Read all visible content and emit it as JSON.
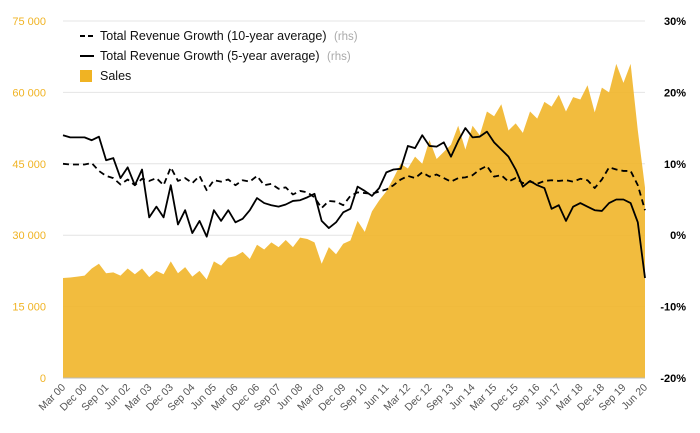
{
  "chart_data": {
    "type": "area",
    "x": [
      "Mar 00",
      "Jun 00",
      "Sep 00",
      "Dec 00",
      "Mar 01",
      "Jun 01",
      "Sep 01",
      "Dec 01",
      "Mar 02",
      "Jun 02",
      "Sep 02",
      "Dec 02",
      "Mar 03",
      "Jun 03",
      "Sep 03",
      "Dec 03",
      "Mar 04",
      "Jun 04",
      "Sep 04",
      "Dec 04",
      "Mar 05",
      "Jun 05",
      "Sep 05",
      "Dec 05",
      "Mar 06",
      "Jun 06",
      "Sep 06",
      "Dec 06",
      "Mar 07",
      "Jun 07",
      "Sep 07",
      "Dec 07",
      "Mar 08",
      "Jun 08",
      "Sep 08",
      "Dec 08",
      "Mar 09",
      "Jun 09",
      "Sep 09",
      "Dec 09",
      "Mar 10",
      "Jun 10",
      "Sep 10",
      "Dec 10",
      "Mar 11",
      "Jun 11",
      "Sep 11",
      "Dec 11",
      "Mar 12",
      "Jun 12",
      "Sep 12",
      "Dec 12",
      "Mar 13",
      "Jun 13",
      "Sep 13",
      "Dec 13",
      "Mar 14",
      "Jun 14",
      "Sep 14",
      "Dec 14",
      "Mar 15",
      "Jun 15",
      "Sep 15",
      "Dec 15",
      "Mar 16",
      "Jun 16",
      "Sep 16",
      "Dec 16",
      "Mar 17",
      "Jun 17",
      "Sep 17",
      "Dec 17",
      "Mar 18",
      "Jun 18",
      "Sep 18",
      "Dec 18",
      "Mar 19",
      "Jun 19",
      "Sep 19",
      "Dec 19",
      "Mar 20",
      "Jun 20"
    ],
    "x_tick_labels": [
      "Mar 00",
      "Dec 00",
      "Sep 01",
      "Jun 02",
      "Mar 03",
      "Dec 03",
      "Sep 04",
      "Jun 05",
      "Mar 06",
      "Dec 06",
      "Sep 07",
      "Jun 08",
      "Mar 09",
      "Dec 09",
      "Sep 10",
      "Jun 11",
      "Mar 12",
      "Dec 12",
      "Sep 13",
      "Jun 14",
      "Mar 15",
      "Dec 15",
      "Sep 16",
      "Jun 17",
      "Mar 18",
      "Dec 18",
      "Sep 19",
      "Jun 20"
    ],
    "y_left": {
      "ticks": [
        "0",
        "15 000",
        "30 000",
        "45 000",
        "60 000",
        "75 000"
      ],
      "lim": [
        0,
        75000
      ]
    },
    "y_right": {
      "ticks": [
        "-20%",
        "-10%",
        "0%",
        "10%",
        "20%",
        "30%"
      ],
      "lim": [
        -20,
        30
      ]
    },
    "series": [
      {
        "name": "Sales",
        "axis": "left",
        "kind": "area",
        "color": "#f0b323",
        "values": [
          21000,
          21100,
          21300,
          21500,
          23000,
          24000,
          22000,
          22200,
          21500,
          23000,
          21800,
          23000,
          21200,
          22500,
          21800,
          24500,
          22000,
          23300,
          21300,
          22500,
          20700,
          24500,
          23600,
          25300,
          25600,
          26500,
          25000,
          28000,
          27000,
          28500,
          27500,
          29000,
          27500,
          29500,
          29200,
          28500,
          24000,
          27500,
          26000,
          28200,
          28900,
          33000,
          30700,
          35000,
          37300,
          39200,
          42000,
          45000,
          44000,
          46500,
          45000,
          50000,
          46000,
          47500,
          49000,
          53000,
          48000,
          53000,
          51000,
          56000,
          55000,
          57500,
          52000,
          53500,
          51500,
          56000,
          54500,
          58000,
          57000,
          59500,
          56000,
          59000,
          58500,
          61500,
          55800,
          61000,
          60000,
          66000,
          62000,
          66000,
          52000,
          40000
        ]
      },
      {
        "name": "Total Revenue Growth (10-year average)",
        "axis": "right",
        "kind": "line",
        "dash": true,
        "color": "#000000",
        "values": [
          10.0,
          9.9,
          9.9,
          9.9,
          10.1,
          9.0,
          8.3,
          8.0,
          7.1,
          7.8,
          7.0,
          7.9,
          7.6,
          8.0,
          7.0,
          9.5,
          7.6,
          8.0,
          7.3,
          8.3,
          6.3,
          7.7,
          7.5,
          7.8,
          7.0,
          7.7,
          7.5,
          8.3,
          7.0,
          7.2,
          6.5,
          6.7,
          5.7,
          6.2,
          6.0,
          5.3,
          3.8,
          4.8,
          4.7,
          4.2,
          5.5,
          6.0,
          5.9,
          5.8,
          6.1,
          6.4,
          7.0,
          7.8,
          8.3,
          8.0,
          8.8,
          8.2,
          8.5,
          8.0,
          7.5,
          8.0,
          8.1,
          8.4,
          9.2,
          9.7,
          8.2,
          8.4,
          7.5,
          8.0,
          7.3,
          7.5,
          7.2,
          7.6,
          7.7,
          7.6,
          7.7,
          7.5,
          7.9,
          7.7,
          6.6,
          7.8,
          9.5,
          9.2,
          9.0,
          9.0,
          7.0,
          3.5
        ]
      },
      {
        "name": "Total Revenue Growth (5-year average)",
        "axis": "right",
        "kind": "line",
        "dash": false,
        "color": "#000000",
        "values": [
          14.0,
          13.7,
          13.7,
          13.7,
          13.3,
          13.8,
          10.5,
          10.8,
          8.0,
          9.5,
          7.0,
          9.2,
          2.5,
          4.0,
          2.5,
          7.0,
          1.5,
          3.5,
          0.3,
          2.0,
          -0.2,
          3.5,
          2.0,
          3.5,
          1.8,
          2.3,
          3.5,
          5.2,
          4.5,
          4.2,
          4.0,
          4.3,
          4.8,
          4.9,
          5.3,
          5.8,
          2.0,
          1.0,
          1.8,
          3.2,
          3.7,
          6.8,
          6.2,
          5.5,
          6.6,
          8.8,
          9.2,
          9.3,
          12.5,
          12.2,
          14.0,
          12.5,
          12.4,
          13.0,
          11.0,
          13.2,
          15.0,
          13.7,
          13.8,
          14.5,
          13.0,
          12.0,
          11.0,
          9.2,
          6.8,
          7.6,
          7.0,
          6.6,
          3.7,
          4.2,
          2.0,
          4.0,
          4.5,
          4.0,
          3.5,
          3.4,
          4.5,
          5.0,
          5.0,
          4.5,
          1.8,
          -6.0
        ]
      }
    ],
    "legend": {
      "placement": "top-left",
      "items": [
        {
          "label": "Total Revenue Growth (10-year average)",
          "suffix": "(rhs)",
          "style": "dashed"
        },
        {
          "label": "Total Revenue Growth (5-year average)",
          "suffix": "(rhs)",
          "style": "solid"
        },
        {
          "label": "Sales",
          "suffix": "",
          "style": "area"
        }
      ]
    },
    "grid": true,
    "title": "",
    "xlabel": "",
    "ylabel": ""
  }
}
